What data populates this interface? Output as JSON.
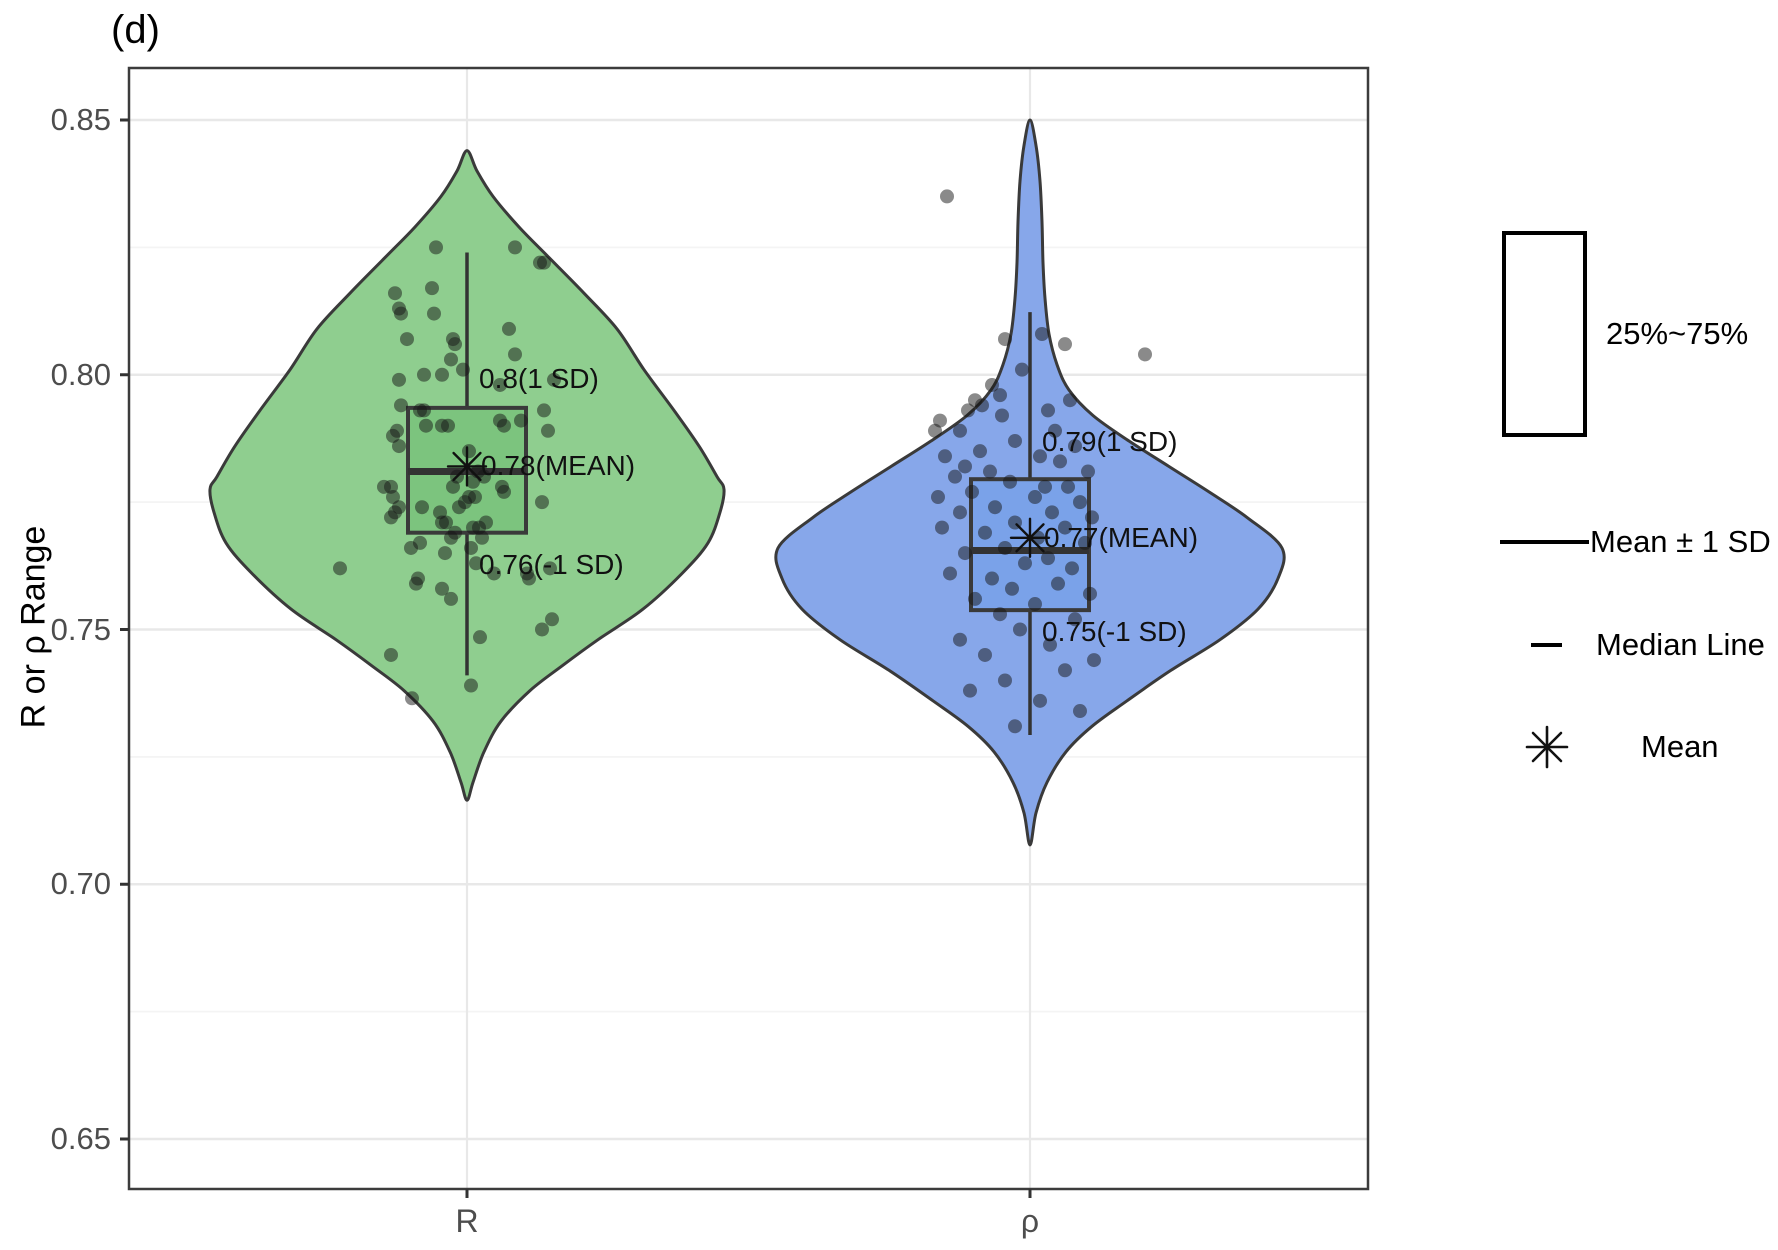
{
  "title": "(d)",
  "y_axis": {
    "label": "R or ρ Range",
    "ticks": [
      "0.85",
      "0.80",
      "0.75",
      "0.70",
      "0.65"
    ],
    "tick_values": [
      0.85,
      0.8,
      0.75,
      0.7,
      0.65
    ],
    "minor_values": [
      0.825,
      0.775,
      0.725,
      0.675
    ]
  },
  "x_axis": {
    "categories": [
      "R",
      "ρ"
    ]
  },
  "legend": {
    "box_label": "25%~75%",
    "sd_label": "Mean ± 1 SD",
    "median_label": "Median Line",
    "mean_label": "Mean"
  },
  "palette": {
    "green_fill": "#8FCE8F",
    "green_box_fill": "#7CC47E",
    "blue_fill": "#87A7EA",
    "blue_box_fill": "#7AA2E9",
    "outline": "#3a3a3a",
    "whisker": "#333333",
    "point": "#161616",
    "grid_major": "#e8e8e8",
    "grid_minor": "#f4f4f4",
    "panel_border": "#3c3c3c",
    "tick_text": "#4d4d4d"
  },
  "chart_data": {
    "type": "violin",
    "title": "(d)",
    "xlabel": "",
    "ylabel": "R or ρ Range",
    "ylim": [
      0.64,
      0.86
    ],
    "grid": true,
    "legend_position": "right",
    "categories": [
      "R",
      "ρ"
    ],
    "series": [
      {
        "name": "R",
        "fill": "#8FCE8F",
        "box_fill": "#7CC47E",
        "mean": 0.782,
        "median": 0.781,
        "q1": 0.769,
        "q3": 0.7935,
        "sd_upper": 0.8,
        "sd_lower": 0.76,
        "whisker_top": 0.824,
        "whisker_bottom": 0.741,
        "tip_top": 0.844,
        "tip_bottom": 0.7165,
        "annotations": {
          "upper": "0.8(1 SD)",
          "mean": "0.78(MEAN)",
          "lower": "0.76(-1 SD)"
        },
        "profile": [
          [
            0.844,
            0
          ],
          [
            0.84,
            10
          ],
          [
            0.835,
            26
          ],
          [
            0.829,
            52
          ],
          [
            0.823,
            82
          ],
          [
            0.816,
            117
          ],
          [
            0.809,
            150
          ],
          [
            0.801,
            177
          ],
          [
            0.793,
            207
          ],
          [
            0.786,
            232
          ],
          [
            0.78,
            250
          ],
          [
            0.7775,
            257
          ],
          [
            0.773,
            253
          ],
          [
            0.767,
            241
          ],
          [
            0.761,
            215
          ],
          [
            0.754,
            176
          ],
          [
            0.748,
            131
          ],
          [
            0.743,
            96
          ],
          [
            0.738,
            63
          ],
          [
            0.732,
            34
          ],
          [
            0.726,
            17
          ],
          [
            0.72,
            6
          ],
          [
            0.7165,
            0
          ]
        ],
        "points": [
          [
            -31,
            0.825
          ],
          [
            48,
            0.825
          ],
          [
            73,
            0.822
          ],
          [
            77,
            0.822
          ],
          [
            -72,
            0.816
          ],
          [
            -35,
            0.817
          ],
          [
            -68,
            0.813
          ],
          [
            -66,
            0.812
          ],
          [
            -33,
            0.812
          ],
          [
            -60,
            0.807
          ],
          [
            -14,
            0.807
          ],
          [
            -12,
            0.806
          ],
          [
            42,
            0.809
          ],
          [
            -16,
            0.803
          ],
          [
            -4,
            0.801
          ],
          [
            48,
            0.804
          ],
          [
            33,
            0.798
          ],
          [
            -68,
            0.799
          ],
          [
            -43,
            0.8
          ],
          [
            -25,
            0.8
          ],
          [
            87,
            0.799
          ],
          [
            -66,
            0.794
          ],
          [
            -43,
            0.793
          ],
          [
            -47,
            0.793
          ],
          [
            -41,
            0.79
          ],
          [
            -25,
            0.79
          ],
          [
            -19,
            0.79
          ],
          [
            33,
            0.791
          ],
          [
            37,
            0.79
          ],
          [
            54,
            0.791
          ],
          [
            77,
            0.793
          ],
          [
            81,
            0.789
          ],
          [
            -68,
            0.786
          ],
          [
            -74,
            0.788
          ],
          [
            -70,
            0.789
          ],
          [
            2,
            0.785
          ],
          [
            11,
            0.781
          ],
          [
            17,
            0.78
          ],
          [
            6,
            0.779
          ],
          [
            -10,
            0.78
          ],
          [
            -14,
            0.778
          ],
          [
            2,
            0.776
          ],
          [
            8,
            0.776
          ],
          [
            37,
            0.777
          ],
          [
            -83,
            0.778
          ],
          [
            -76,
            0.778
          ],
          [
            -74,
            0.776
          ],
          [
            -68,
            0.774
          ],
          [
            -72,
            0.773
          ],
          [
            -45,
            0.774
          ],
          [
            -27,
            0.773
          ],
          [
            -8,
            0.774
          ],
          [
            -2,
            0.775
          ],
          [
            35,
            0.778
          ],
          [
            75,
            0.775
          ],
          [
            -25,
            0.771
          ],
          [
            -21,
            0.771
          ],
          [
            -12,
            0.769
          ],
          [
            6,
            0.77
          ],
          [
            12,
            0.77
          ],
          [
            19,
            0.771
          ],
          [
            -76,
            0.772
          ],
          [
            -16,
            0.768
          ],
          [
            15,
            0.768
          ],
          [
            4,
            0.766
          ],
          [
            -47,
            0.767
          ],
          [
            -56,
            0.766
          ],
          [
            -22,
            0.765
          ],
          [
            9,
            0.763
          ],
          [
            27,
            0.761
          ],
          [
            60,
            0.761
          ],
          [
            62,
            0.76
          ],
          [
            83,
            0.762
          ],
          [
            -49,
            0.76
          ],
          [
            -51,
            0.759
          ],
          [
            -25,
            0.758
          ],
          [
            -16,
            0.756
          ],
          [
            85,
            0.752
          ],
          [
            75,
            0.75
          ],
          [
            13,
            0.7485
          ],
          [
            -76,
            0.745
          ],
          [
            4,
            0.739
          ],
          [
            -127,
            0.762
          ],
          [
            -55,
            0.7365
          ]
        ]
      },
      {
        "name": "ρ",
        "fill": "#87A7EA",
        "box_fill": "#7AA2E9",
        "mean": 0.768,
        "median": 0.7655,
        "q1": 0.7538,
        "q3": 0.7795,
        "sd_upper": 0.79,
        "sd_lower": 0.75,
        "whisker_top": 0.8123,
        "whisker_bottom": 0.7293,
        "tip_top": 0.85,
        "tip_bottom": 0.7077,
        "annotations": {
          "upper": "0.79(1 SD)",
          "mean": "0.77(MEAN)",
          "lower": "0.75(-1 SD)"
        },
        "profile": [
          [
            0.85,
            0
          ],
          [
            0.845,
            6
          ],
          [
            0.838,
            10
          ],
          [
            0.83,
            12
          ],
          [
            0.822,
            13
          ],
          [
            0.815,
            15
          ],
          [
            0.808,
            19
          ],
          [
            0.802,
            27
          ],
          [
            0.797,
            39
          ],
          [
            0.792,
            63
          ],
          [
            0.787,
            99
          ],
          [
            0.782,
            139
          ],
          [
            0.777,
            179
          ],
          [
            0.772,
            217
          ],
          [
            0.766,
            252
          ],
          [
            0.76,
            248
          ],
          [
            0.754,
            228
          ],
          [
            0.748,
            190
          ],
          [
            0.742,
            141
          ],
          [
            0.736,
            97
          ],
          [
            0.731,
            62
          ],
          [
            0.726,
            36
          ],
          [
            0.72,
            17
          ],
          [
            0.714,
            6
          ],
          [
            0.7077,
            0
          ]
        ],
        "points": [
          [
            -83,
            0.835
          ],
          [
            12,
            0.808
          ],
          [
            -25,
            0.807
          ],
          [
            35,
            0.806
          ],
          [
            115,
            0.804
          ],
          [
            -8,
            0.801
          ],
          [
            -38,
            0.798
          ],
          [
            -30,
            0.796
          ],
          [
            -55,
            0.795
          ],
          [
            -48,
            0.794
          ],
          [
            -62,
            0.793
          ],
          [
            -28,
            0.792
          ],
          [
            18,
            0.793
          ],
          [
            40,
            0.795
          ],
          [
            -90,
            0.791
          ],
          [
            -95,
            0.789
          ],
          [
            -70,
            0.789
          ],
          [
            25,
            0.789
          ],
          [
            -15,
            0.787
          ],
          [
            45,
            0.786
          ],
          [
            -50,
            0.785
          ],
          [
            -85,
            0.784
          ],
          [
            10,
            0.784
          ],
          [
            30,
            0.783
          ],
          [
            -65,
            0.782
          ],
          [
            -40,
            0.781
          ],
          [
            58,
            0.781
          ],
          [
            -75,
            0.78
          ],
          [
            -20,
            0.779
          ],
          [
            15,
            0.778
          ],
          [
            38,
            0.778
          ],
          [
            -58,
            0.777
          ],
          [
            -92,
            0.776
          ],
          [
            5,
            0.776
          ],
          [
            50,
            0.775
          ],
          [
            -35,
            0.774
          ],
          [
            -70,
            0.773
          ],
          [
            22,
            0.773
          ],
          [
            62,
            0.772
          ],
          [
            -15,
            0.771
          ],
          [
            -88,
            0.77
          ],
          [
            35,
            0.77
          ],
          [
            -45,
            0.769
          ],
          [
            8,
            0.768
          ],
          [
            55,
            0.767
          ],
          [
            -25,
            0.766
          ],
          [
            -65,
            0.765
          ],
          [
            18,
            0.764
          ],
          [
            -5,
            0.763
          ],
          [
            42,
            0.762
          ],
          [
            -80,
            0.761
          ],
          [
            -38,
            0.76
          ],
          [
            28,
            0.759
          ],
          [
            -18,
            0.758
          ],
          [
            60,
            0.757
          ],
          [
            -55,
            0.756
          ],
          [
            5,
            0.755
          ],
          [
            -30,
            0.753
          ],
          [
            45,
            0.752
          ],
          [
            -10,
            0.75
          ],
          [
            -70,
            0.748
          ],
          [
            20,
            0.747
          ],
          [
            -45,
            0.745
          ],
          [
            64,
            0.744
          ],
          [
            35,
            0.742
          ],
          [
            -25,
            0.74
          ],
          [
            -60,
            0.738
          ],
          [
            10,
            0.736
          ],
          [
            50,
            0.734
          ],
          [
            -15,
            0.731
          ]
        ]
      }
    ]
  }
}
